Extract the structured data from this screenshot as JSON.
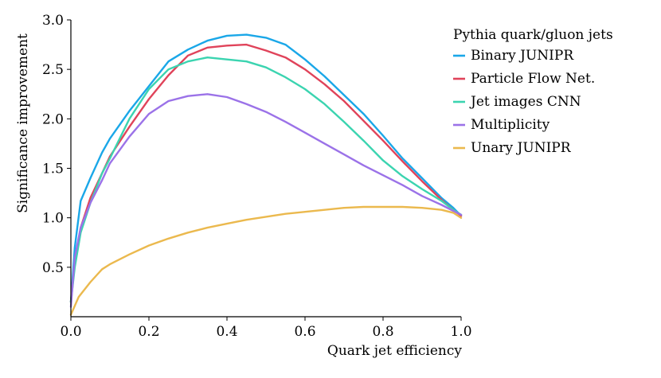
{
  "chart_data": {
    "type": "line",
    "title": "",
    "xlabel": "Quark jet efficiency",
    "ylabel": "Significance improvement",
    "xlim": [
      0.0,
      1.0
    ],
    "ylim": [
      0.0,
      3.0
    ],
    "xticks": [
      "0.0",
      "0.2",
      "0.4",
      "0.6",
      "0.8",
      "1.0"
    ],
    "yticks": [
      "0.5",
      "1.0",
      "1.5",
      "2.0",
      "2.5",
      "3.0"
    ],
    "legend_title": "Pythia quark/gluon jets",
    "legend_position": "top-right",
    "grid": false,
    "series": [
      {
        "name": "Binary JUNIPR",
        "color": "#1aa7e8",
        "x": [
          0.0,
          0.01,
          0.025,
          0.05,
          0.08,
          0.1,
          0.15,
          0.2,
          0.25,
          0.3,
          0.35,
          0.4,
          0.45,
          0.5,
          0.55,
          0.6,
          0.65,
          0.7,
          0.75,
          0.8,
          0.85,
          0.9,
          0.95,
          0.98,
          1.0
        ],
        "y": [
          0.15,
          0.7,
          1.17,
          1.4,
          1.66,
          1.8,
          2.08,
          2.33,
          2.58,
          2.7,
          2.79,
          2.84,
          2.85,
          2.82,
          2.75,
          2.6,
          2.43,
          2.24,
          2.05,
          1.83,
          1.6,
          1.4,
          1.2,
          1.1,
          1.02
        ]
      },
      {
        "name": "Particle Flow Net.",
        "color": "#e0435a",
        "x": [
          0.0,
          0.01,
          0.025,
          0.05,
          0.08,
          0.1,
          0.15,
          0.2,
          0.25,
          0.3,
          0.35,
          0.4,
          0.45,
          0.5,
          0.55,
          0.6,
          0.65,
          0.7,
          0.75,
          0.8,
          0.85,
          0.9,
          0.95,
          0.98,
          1.0
        ],
        "y": [
          0.15,
          0.55,
          0.9,
          1.2,
          1.45,
          1.62,
          1.92,
          2.2,
          2.44,
          2.64,
          2.72,
          2.74,
          2.75,
          2.69,
          2.62,
          2.5,
          2.35,
          2.18,
          1.98,
          1.78,
          1.57,
          1.37,
          1.18,
          1.08,
          1.02
        ]
      },
      {
        "name": "Jet images CNN",
        "color": "#3bd4b0",
        "x": [
          0.0,
          0.01,
          0.025,
          0.05,
          0.08,
          0.1,
          0.15,
          0.2,
          0.25,
          0.3,
          0.35,
          0.4,
          0.45,
          0.5,
          0.55,
          0.6,
          0.65,
          0.7,
          0.75,
          0.8,
          0.85,
          0.9,
          0.95,
          0.98,
          1.0
        ],
        "y": [
          0.15,
          0.5,
          0.85,
          1.15,
          1.45,
          1.6,
          2.0,
          2.3,
          2.5,
          2.58,
          2.62,
          2.6,
          2.58,
          2.52,
          2.42,
          2.3,
          2.15,
          1.97,
          1.78,
          1.58,
          1.42,
          1.29,
          1.17,
          1.08,
          1.03
        ]
      },
      {
        "name": "Multiplicity",
        "color": "#9b72e8",
        "x": [
          0.0,
          0.01,
          0.025,
          0.05,
          0.08,
          0.1,
          0.15,
          0.2,
          0.25,
          0.3,
          0.35,
          0.4,
          0.45,
          0.5,
          0.55,
          0.6,
          0.65,
          0.7,
          0.75,
          0.8,
          0.85,
          0.9,
          0.95,
          0.98,
          1.0
        ],
        "y": [
          0.1,
          0.6,
          0.9,
          1.15,
          1.38,
          1.55,
          1.82,
          2.05,
          2.18,
          2.23,
          2.25,
          2.22,
          2.15,
          2.07,
          1.97,
          1.86,
          1.75,
          1.64,
          1.53,
          1.43,
          1.33,
          1.22,
          1.13,
          1.07,
          1.03
        ]
      },
      {
        "name": "Unary JUNIPR",
        "color": "#ebb94e",
        "x": [
          0.0,
          0.02,
          0.05,
          0.08,
          0.1,
          0.15,
          0.2,
          0.25,
          0.3,
          0.35,
          0.4,
          0.45,
          0.5,
          0.55,
          0.6,
          0.65,
          0.7,
          0.75,
          0.8,
          0.85,
          0.9,
          0.95,
          0.98,
          1.0
        ],
        "y": [
          0.02,
          0.2,
          0.35,
          0.48,
          0.53,
          0.63,
          0.72,
          0.79,
          0.85,
          0.9,
          0.94,
          0.98,
          1.01,
          1.04,
          1.06,
          1.08,
          1.1,
          1.11,
          1.11,
          1.11,
          1.1,
          1.08,
          1.05,
          1.0
        ]
      }
    ]
  }
}
